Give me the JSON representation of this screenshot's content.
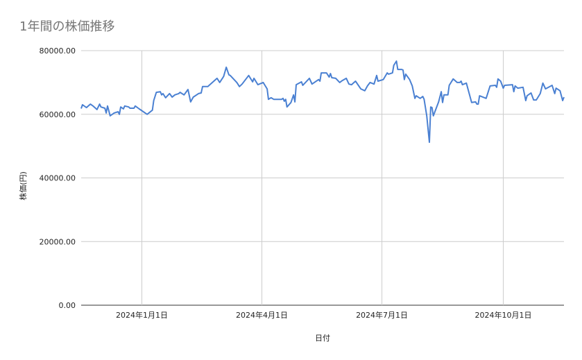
{
  "chart_data": {
    "type": "line",
    "title": "1年間の株価推移",
    "xlabel": "日付",
    "ylabel": "株価(円)",
    "xlim": [
      "2023-11-16",
      "2024-11-16"
    ],
    "ylim": [
      0,
      80000
    ],
    "grid": true,
    "legend": "none",
    "line_color": "#4a80d2",
    "x_ticks": [
      {
        "date": "2024-01-01",
        "label": "2024年1月1日"
      },
      {
        "date": "2024-04-01",
        "label": "2024年4月1日"
      },
      {
        "date": "2024-07-01",
        "label": "2024年7月1日"
      },
      {
        "date": "2024-10-01",
        "label": "2024年10月1日"
      }
    ],
    "y_ticks": [
      {
        "value": 0,
        "label": "0.00"
      },
      {
        "value": 20000,
        "label": "20000.00"
      },
      {
        "value": 40000,
        "label": "40000.00"
      },
      {
        "value": 60000,
        "label": "60000.00"
      },
      {
        "value": 80000,
        "label": "80000.00"
      }
    ],
    "points": [
      [
        "2023-11-16",
        61800
      ],
      [
        "2023-11-17",
        63000
      ],
      [
        "2023-11-20",
        62100
      ],
      [
        "2023-11-23",
        63200
      ],
      [
        "2023-11-25",
        62600
      ],
      [
        "2023-11-28",
        61500
      ],
      [
        "2023-11-30",
        63200
      ],
      [
        "2023-12-01",
        62300
      ],
      [
        "2023-12-04",
        61900
      ],
      [
        "2023-12-05",
        60400
      ],
      [
        "2023-12-06",
        62600
      ],
      [
        "2023-12-08",
        59500
      ],
      [
        "2023-12-11",
        60400
      ],
      [
        "2023-12-14",
        60800
      ],
      [
        "2023-12-15",
        60000
      ],
      [
        "2023-12-16",
        62300
      ],
      [
        "2023-12-18",
        61700
      ],
      [
        "2023-12-19",
        62600
      ],
      [
        "2023-12-22",
        62300
      ],
      [
        "2023-12-23",
        61900
      ],
      [
        "2023-12-26",
        61900
      ],
      [
        "2023-12-27",
        62600
      ],
      [
        "2023-12-30",
        61700
      ],
      [
        "2024-01-05",
        60000
      ],
      [
        "2024-01-09",
        61300
      ],
      [
        "2024-01-10",
        64300
      ],
      [
        "2024-01-12",
        66900
      ],
      [
        "2024-01-15",
        67100
      ],
      [
        "2024-01-16",
        66100
      ],
      [
        "2024-01-17",
        66500
      ],
      [
        "2024-01-19",
        65200
      ],
      [
        "2024-01-22",
        66500
      ],
      [
        "2024-01-24",
        65400
      ],
      [
        "2024-01-26",
        66100
      ],
      [
        "2024-01-29",
        66500
      ],
      [
        "2024-01-30",
        66900
      ],
      [
        "2024-02-02",
        66100
      ],
      [
        "2024-02-05",
        67800
      ],
      [
        "2024-02-07",
        63900
      ],
      [
        "2024-02-09",
        65400
      ],
      [
        "2024-02-13",
        66500
      ],
      [
        "2024-02-15",
        66700
      ],
      [
        "2024-02-16",
        68700
      ],
      [
        "2024-02-20",
        68700
      ],
      [
        "2024-02-21",
        69100
      ],
      [
        "2024-02-27",
        71300
      ],
      [
        "2024-02-29",
        70000
      ],
      [
        "2024-03-03",
        71900
      ],
      [
        "2024-03-05",
        74800
      ],
      [
        "2024-03-07",
        72400
      ],
      [
        "2024-03-08",
        72200
      ],
      [
        "2024-03-13",
        70000
      ],
      [
        "2024-03-15",
        68700
      ],
      [
        "2024-03-17",
        69500
      ],
      [
        "2024-03-22",
        72200
      ],
      [
        "2024-03-25",
        70200
      ],
      [
        "2024-03-26",
        71300
      ],
      [
        "2024-03-29",
        69300
      ],
      [
        "2024-04-02",
        70000
      ],
      [
        "2024-04-05",
        68000
      ],
      [
        "2024-04-06",
        64700
      ],
      [
        "2024-04-08",
        65200
      ],
      [
        "2024-04-10",
        64700
      ],
      [
        "2024-04-12",
        64700
      ],
      [
        "2024-04-16",
        64700
      ],
      [
        "2024-04-17",
        65000
      ],
      [
        "2024-04-18",
        64100
      ],
      [
        "2024-04-19",
        64700
      ],
      [
        "2024-04-20",
        62300
      ],
      [
        "2024-04-23",
        63700
      ],
      [
        "2024-04-25",
        66100
      ],
      [
        "2024-04-26",
        63900
      ],
      [
        "2024-04-27",
        69300
      ],
      [
        "2024-05-01",
        70200
      ],
      [
        "2024-05-02",
        69100
      ],
      [
        "2024-05-07",
        71300
      ],
      [
        "2024-05-09",
        69500
      ],
      [
        "2024-05-14",
        70900
      ],
      [
        "2024-05-15",
        70400
      ],
      [
        "2024-05-16",
        73000
      ],
      [
        "2024-05-20",
        73000
      ],
      [
        "2024-05-22",
        71700
      ],
      [
        "2024-05-23",
        72800
      ],
      [
        "2024-05-24",
        71500
      ],
      [
        "2024-05-27",
        71300
      ],
      [
        "2024-05-30",
        70000
      ],
      [
        "2024-06-01",
        70600
      ],
      [
        "2024-06-04",
        71300
      ],
      [
        "2024-06-06",
        69500
      ],
      [
        "2024-06-08",
        69300
      ],
      [
        "2024-06-11",
        70400
      ],
      [
        "2024-06-15",
        68000
      ],
      [
        "2024-06-18",
        67400
      ],
      [
        "2024-06-20",
        68900
      ],
      [
        "2024-06-22",
        70000
      ],
      [
        "2024-06-25",
        69500
      ],
      [
        "2024-06-27",
        72200
      ],
      [
        "2024-06-28",
        70400
      ],
      [
        "2024-07-02",
        70900
      ],
      [
        "2024-07-05",
        73000
      ],
      [
        "2024-07-06",
        72600
      ],
      [
        "2024-07-09",
        73000
      ],
      [
        "2024-07-10",
        75400
      ],
      [
        "2024-07-12",
        76700
      ],
      [
        "2024-07-13",
        74100
      ],
      [
        "2024-07-16",
        74100
      ],
      [
        "2024-07-17",
        73900
      ],
      [
        "2024-07-18",
        70900
      ],
      [
        "2024-07-19",
        72600
      ],
      [
        "2024-07-22",
        70900
      ],
      [
        "2024-07-24",
        68900
      ],
      [
        "2024-07-26",
        65000
      ],
      [
        "2024-07-27",
        65800
      ],
      [
        "2024-07-30",
        65000
      ],
      [
        "2024-08-01",
        65600
      ],
      [
        "2024-08-02",
        64700
      ],
      [
        "2024-08-04",
        59500
      ],
      [
        "2024-08-06",
        51200
      ],
      [
        "2024-08-07",
        62300
      ],
      [
        "2024-08-08",
        62100
      ],
      [
        "2024-08-09",
        59500
      ],
      [
        "2024-08-13",
        63900
      ],
      [
        "2024-08-15",
        67100
      ],
      [
        "2024-08-16",
        63700
      ],
      [
        "2024-08-17",
        66100
      ],
      [
        "2024-08-20",
        66100
      ],
      [
        "2024-08-21",
        69100
      ],
      [
        "2024-08-24",
        71100
      ],
      [
        "2024-08-27",
        70000
      ],
      [
        "2024-08-29",
        70000
      ],
      [
        "2024-08-30",
        70400
      ],
      [
        "2024-08-31",
        69300
      ],
      [
        "2024-09-03",
        69800
      ],
      [
        "2024-09-07",
        63700
      ],
      [
        "2024-09-10",
        63900
      ],
      [
        "2024-09-11",
        63200
      ],
      [
        "2024-09-12",
        63200
      ],
      [
        "2024-09-13",
        65800
      ],
      [
        "2024-09-18",
        65000
      ],
      [
        "2024-09-21",
        68900
      ],
      [
        "2024-09-25",
        69100
      ],
      [
        "2024-09-26",
        68500
      ],
      [
        "2024-09-27",
        71100
      ],
      [
        "2024-09-29",
        70400
      ],
      [
        "2024-10-01",
        68200
      ],
      [
        "2024-10-02",
        69100
      ],
      [
        "2024-10-08",
        69300
      ],
      [
        "2024-10-09",
        67100
      ],
      [
        "2024-10-10",
        68900
      ],
      [
        "2024-10-12",
        68200
      ],
      [
        "2024-10-16",
        68500
      ],
      [
        "2024-10-18",
        64300
      ],
      [
        "2024-10-19",
        65800
      ],
      [
        "2024-10-22",
        66700
      ],
      [
        "2024-10-24",
        64500
      ],
      [
        "2024-10-26",
        64500
      ],
      [
        "2024-10-29",
        66500
      ],
      [
        "2024-10-31",
        69800
      ],
      [
        "2024-11-02",
        68000
      ],
      [
        "2024-11-07",
        69100
      ],
      [
        "2024-11-09",
        66500
      ],
      [
        "2024-11-10",
        68200
      ],
      [
        "2024-11-13",
        67400
      ],
      [
        "2024-11-15",
        64300
      ],
      [
        "2024-11-16",
        65400
      ]
    ]
  }
}
